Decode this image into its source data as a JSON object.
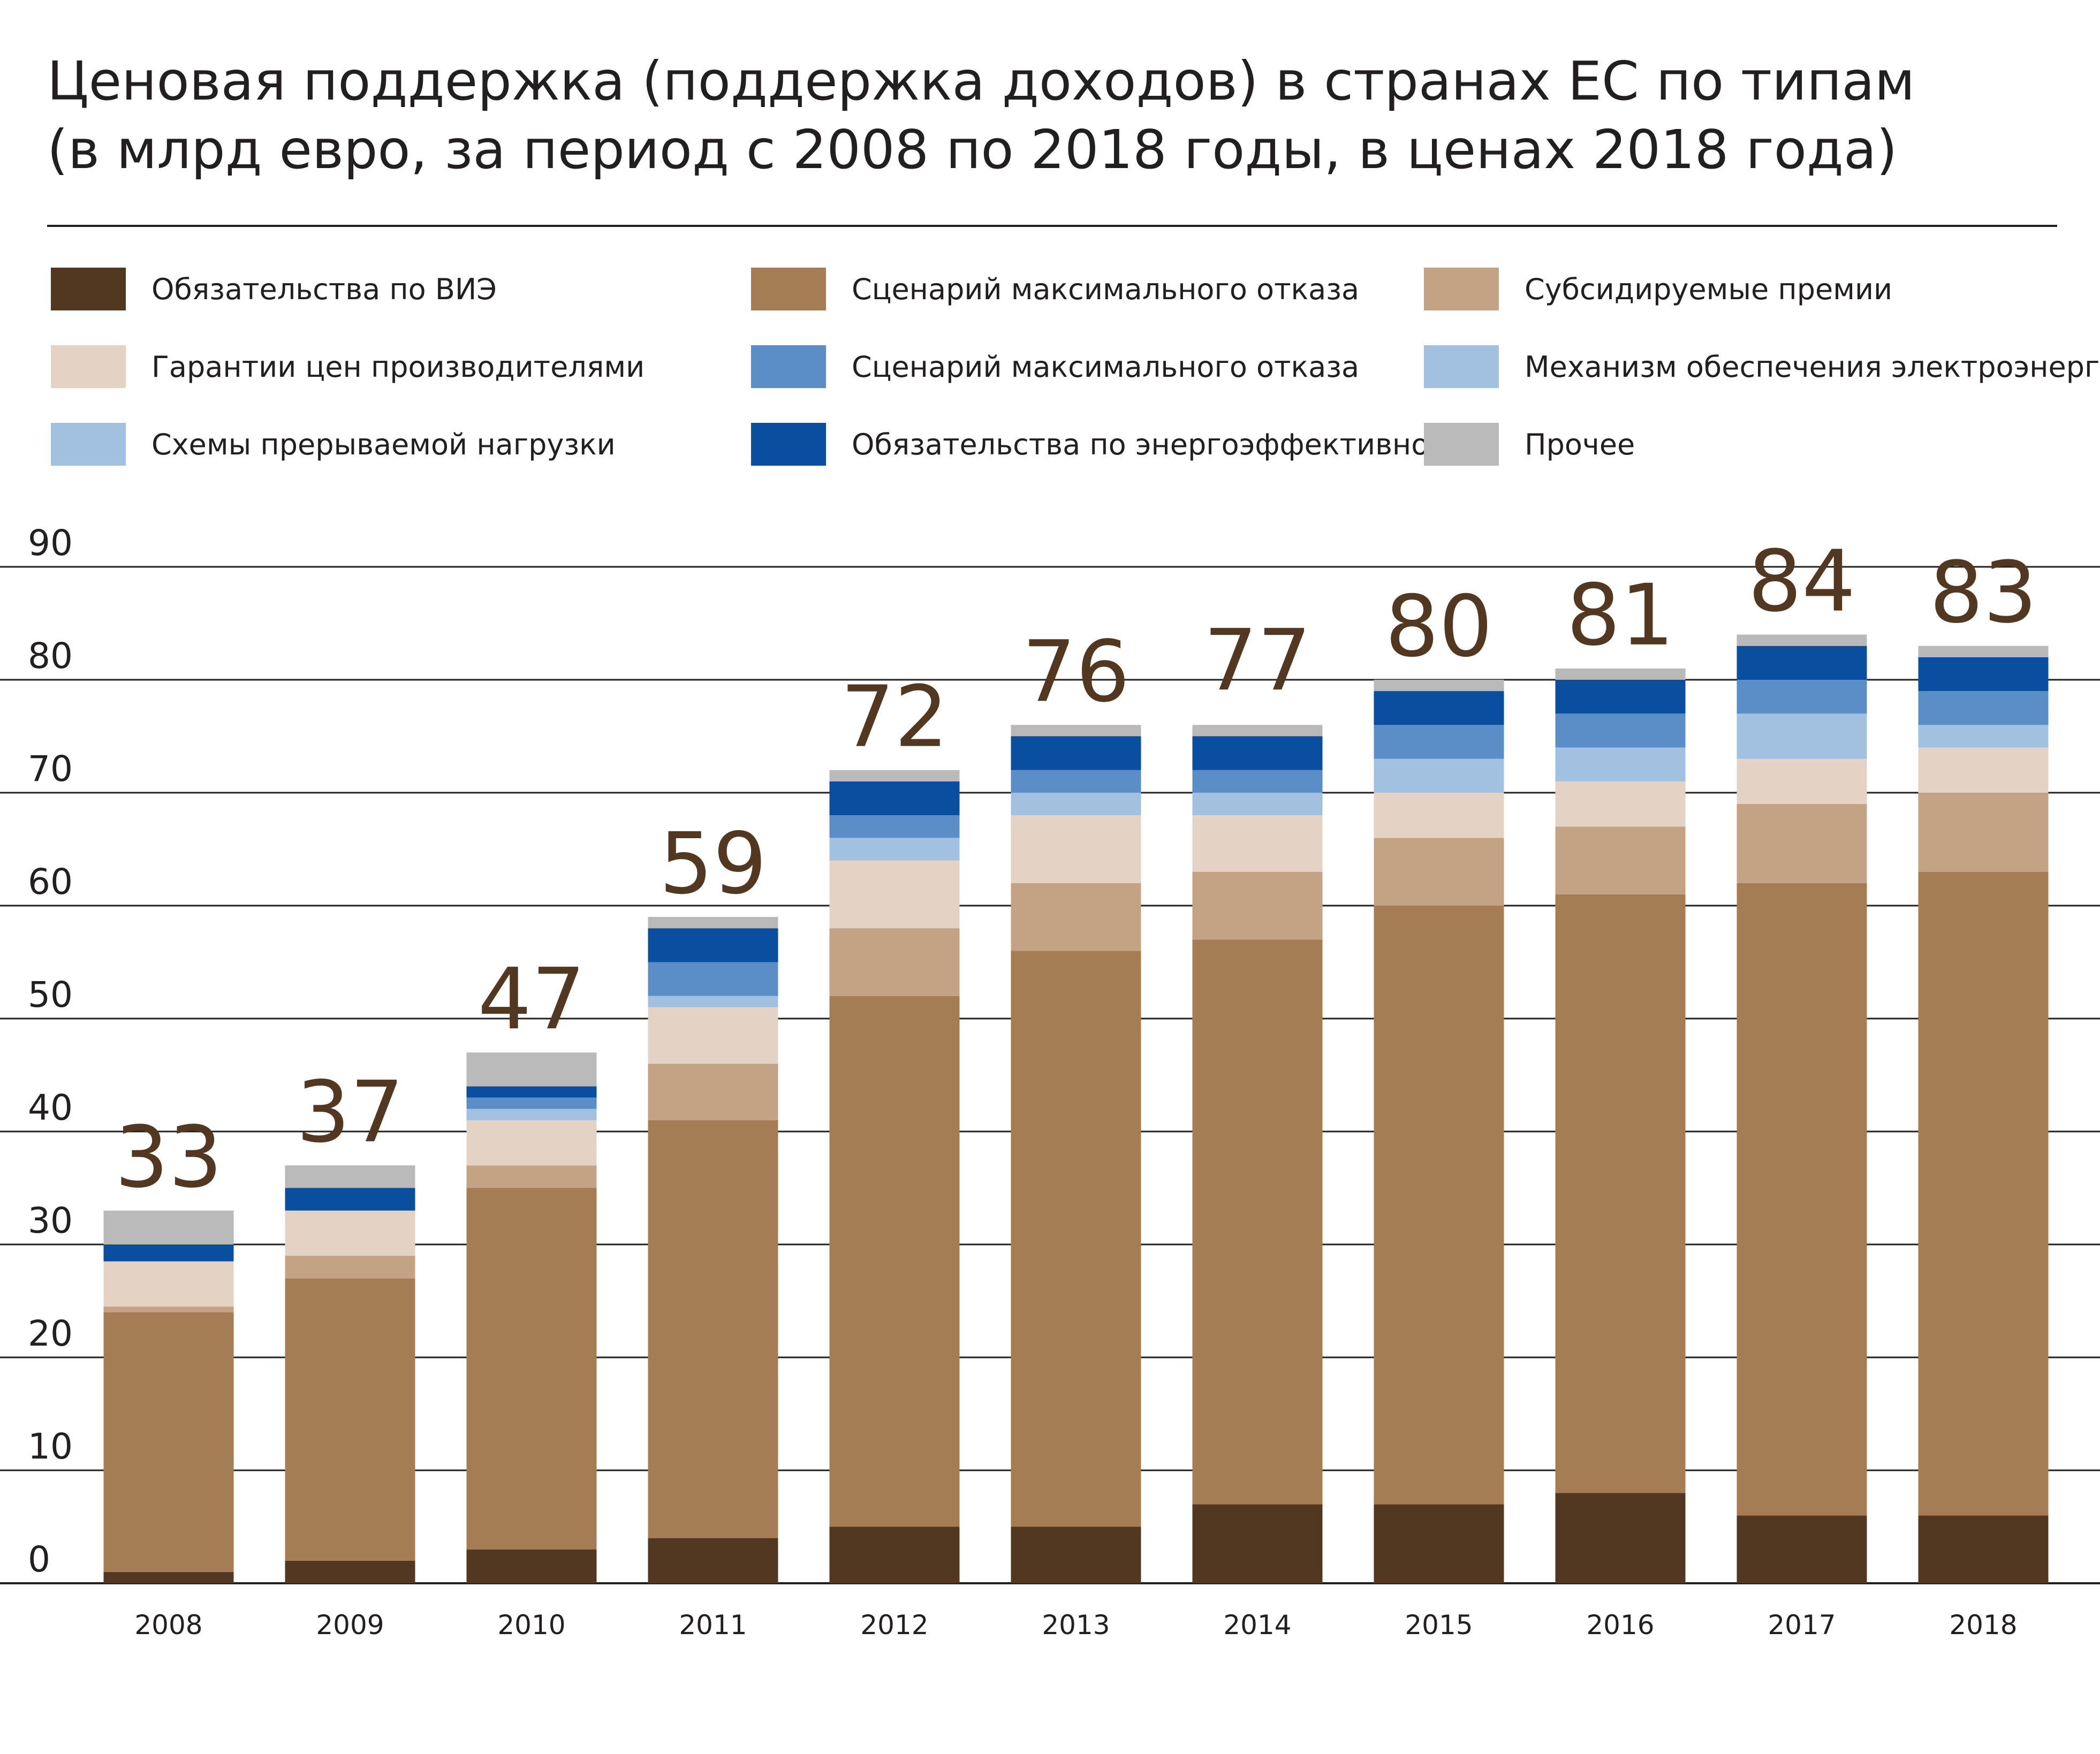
{
  "title_lines": [
    "Ценовая поддержка (поддержка доходов) в странах ЕС по типам",
    "(в млрд евро, за период с 2008 по 2018 годы, в ценах 2018 года)"
  ],
  "colors": {
    "vie": "#523820",
    "max_refusal_brown": "#a67c52",
    "premiums": "#c4a384",
    "guarantees": "#e4d3c4",
    "max_refusal_blue": "#5b8ec6",
    "electricity": "#a2c1e1",
    "interruptible": "#a2c1e1",
    "efficiency": "#0a4f9f",
    "other": "#b9b9b9",
    "total_labels": "#523820",
    "grid": "#231f20"
  },
  "legend": [
    {
      "label": "Обязательства по ВИЭ",
      "color": "#523820"
    },
    {
      "label": "Сценарий максимального отказа",
      "color": "#a67c52"
    },
    {
      "label": "Субсидируемые премии",
      "color": "#c4a384"
    },
    {
      "label": "Гарантии цен производителями",
      "color": "#e4d3c4"
    },
    {
      "label": "Сценарий максимального отказа",
      "color": "#5b8ec6"
    },
    {
      "label": "Механизм обеспечения электроэнергией",
      "color": "#a2c1e1"
    },
    {
      "label": "Схемы прерываемой нагрузки",
      "color": "#a2c1e1"
    },
    {
      "label": "Обязательства по энергоэффективности",
      "color": "#0a4f9f"
    },
    {
      "label": "Прочее",
      "color": "#b9b9b9"
    }
  ],
  "chart_data": {
    "type": "bar",
    "stacked": true,
    "categories": [
      "2008",
      "2009",
      "2010",
      "2011",
      "2012",
      "2013",
      "2014",
      "2015",
      "2016",
      "2017",
      "2018"
    ],
    "ylim": [
      0,
      90
    ],
    "yticks": [
      0,
      10,
      20,
      30,
      40,
      50,
      60,
      70,
      80,
      90
    ],
    "grid": true,
    "legend_position": "top",
    "totals": [
      33,
      37,
      47,
      59,
      72,
      76,
      77,
      80,
      81,
      84,
      83
    ],
    "series": [
      {
        "name": "Обязательства по ВИЭ",
        "color": "#523820",
        "values": [
          1,
          2,
          3,
          4,
          5,
          5,
          7,
          7,
          8,
          6,
          6
        ]
      },
      {
        "name": "Сценарий максимального отказа",
        "color": "#a67c52",
        "values": [
          23,
          25,
          32,
          37,
          47,
          51,
          50,
          53,
          53,
          56,
          57
        ]
      },
      {
        "name": "Субсидируемые премии",
        "color": "#c4a384",
        "values": [
          0.5,
          2,
          2,
          5,
          6,
          6,
          6,
          6,
          6,
          7,
          7
        ]
      },
      {
        "name": "Гарантии цен производителями",
        "color": "#e4d3c4",
        "values": [
          4,
          4,
          4,
          5,
          6,
          6,
          5,
          4,
          4,
          4,
          4
        ]
      },
      {
        "name": "Механизм обеспечения электроэнергией",
        "color": "#a2c1e1",
        "values": [
          0,
          0,
          1,
          1,
          2,
          2,
          2,
          3,
          3,
          4,
          2
        ]
      },
      {
        "name": "Сценарий максимального отказа",
        "color": "#5b8ec6",
        "values": [
          0,
          0,
          1,
          3,
          2,
          2,
          2,
          3,
          3,
          3,
          3
        ]
      },
      {
        "name": "Обязательства по энергоэффективности",
        "color": "#0a4f9f",
        "values": [
          1.5,
          2,
          1,
          3,
          3,
          3,
          3,
          3,
          3,
          3,
          3
        ]
      },
      {
        "name": "Прочее",
        "color": "#b9b9b9",
        "values": [
          3,
          2,
          3,
          1,
          1,
          1,
          1,
          1,
          1,
          1,
          1
        ]
      }
    ]
  }
}
